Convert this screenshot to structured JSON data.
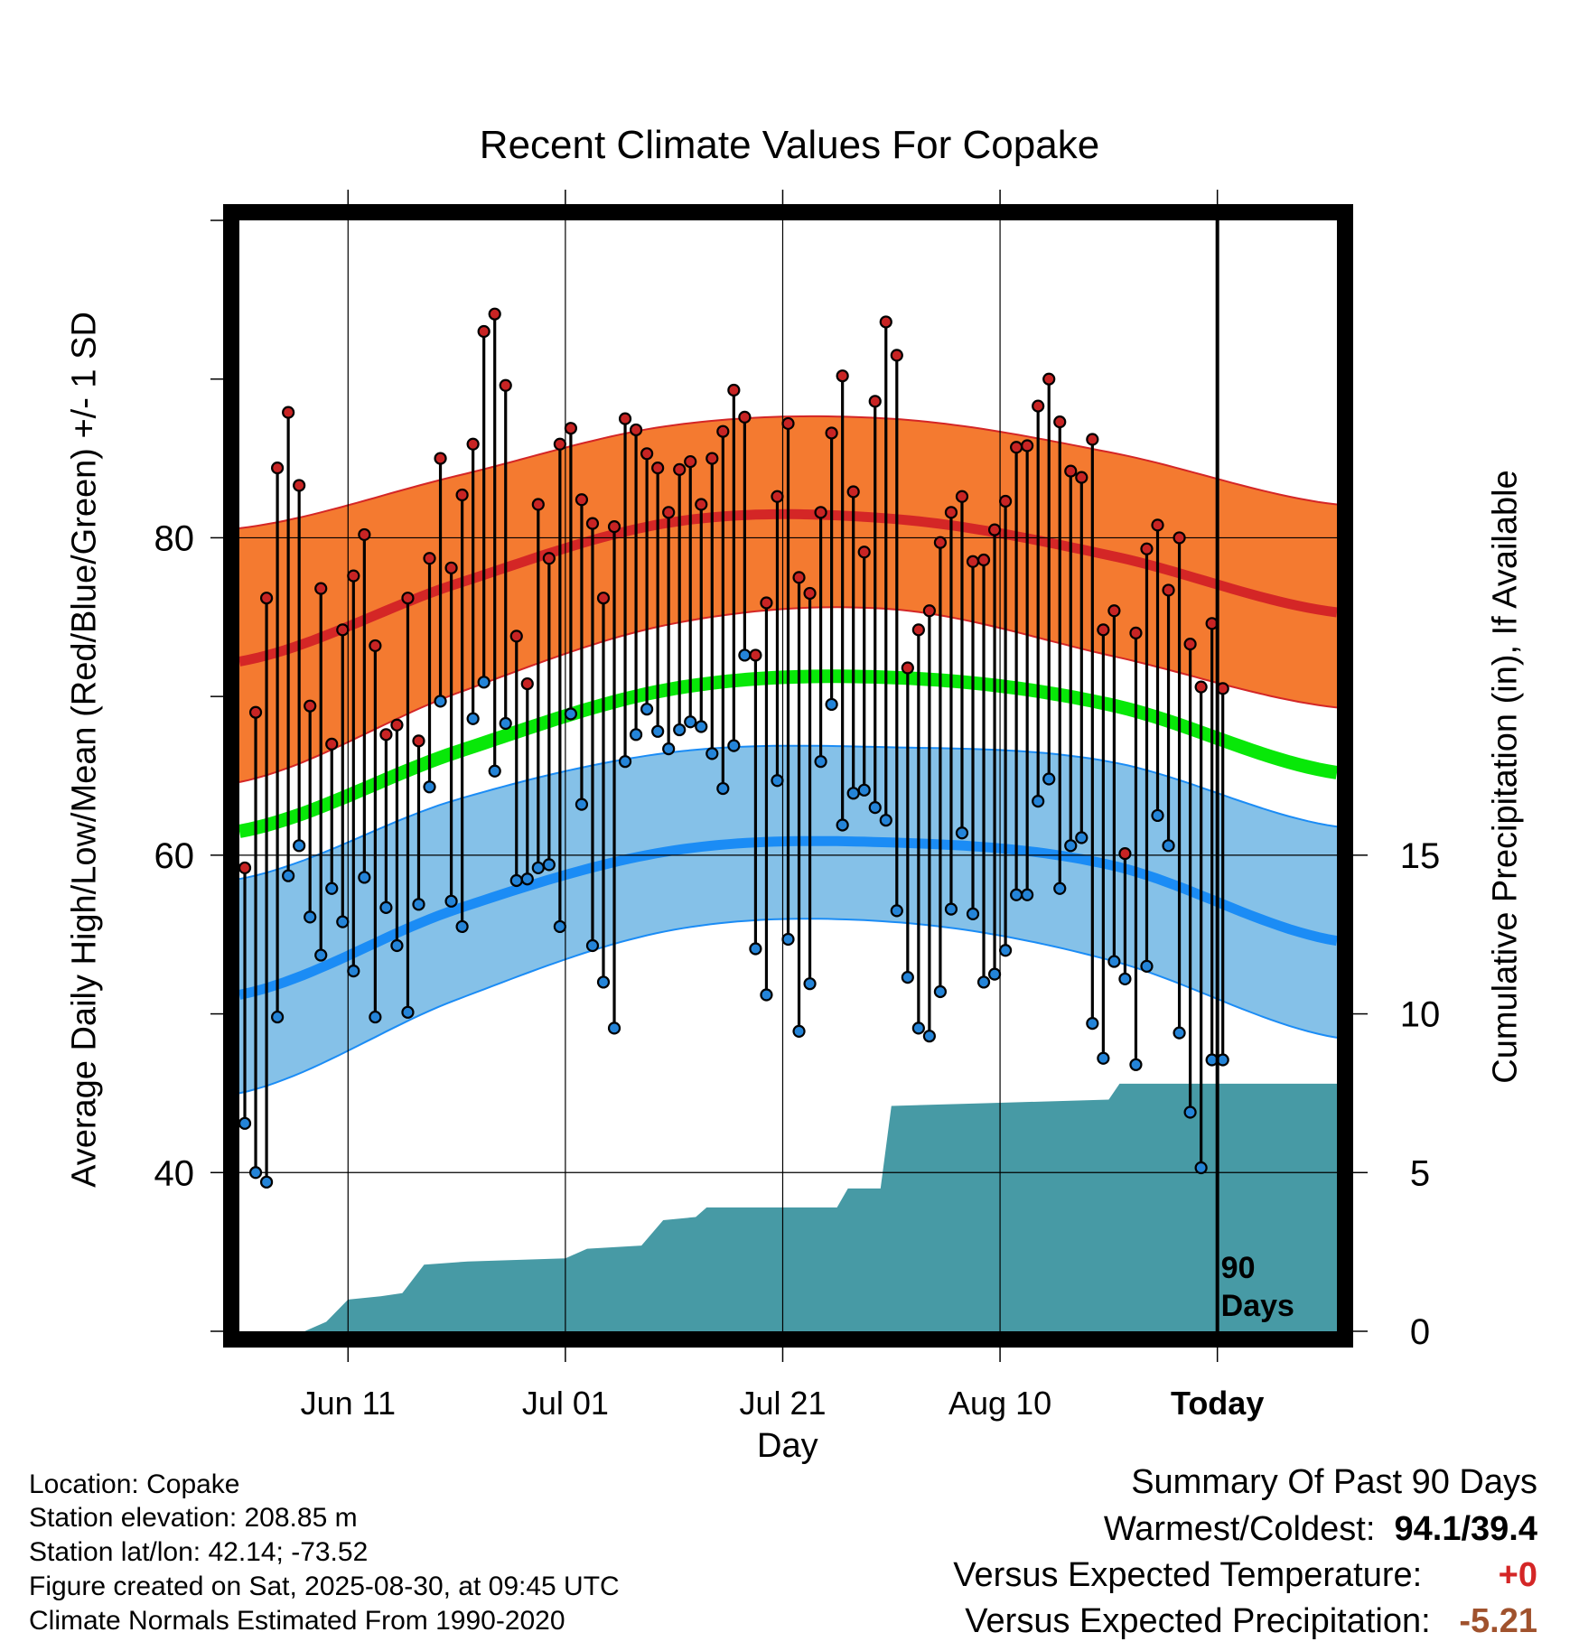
{
  "title": "Recent Climate Values For Copake",
  "axes": {
    "y_left_label": "Average Daily High/Low/Mean (Red/Blue/Green) +/- 1 SD",
    "y_right_label": "Cumulative Precipitation (in), If Available",
    "x_label": "Day",
    "x_ticks": [
      "Jun 11",
      "Jul 01",
      "Jul 21",
      "Aug 10",
      "Today"
    ],
    "y_left_ticks": [
      "40",
      "60",
      "80"
    ],
    "y_right_ticks": [
      "0",
      "5",
      "10",
      "15"
    ]
  },
  "today_marker": {
    "line1": "90",
    "line2": "Days"
  },
  "info": {
    "location": "Location: Copake",
    "elevation": "Station elevation: 208.85 m",
    "latlon": "Station lat/lon: 42.14; -73.52",
    "created": "Figure created on Sat, 2025-08-30, at 09:45 UTC",
    "normals": "Climate Normals Estimated From 1990-2020"
  },
  "summary": {
    "heading": "Summary Of Past 90 Days",
    "warmest_label": "Warmest/Coldest:",
    "warmest_value": "94.1/39.4",
    "temp_label": "Versus Expected Temperature:",
    "temp_value": "+0",
    "precip_label": "Versus Expected Precipitation:",
    "precip_value": "-5.21"
  },
  "colors": {
    "high_band": "#f47a30",
    "high_line": "#d42626",
    "high_edge": "#d42626",
    "low_band": "#85c1e8",
    "low_line": "#1b8cf5",
    "low_edge": "#1b8cf5",
    "mean_line": "#08e808",
    "precip": "#479aa5",
    "high_dot": "#c82424",
    "low_dot": "#2484d8",
    "value_red": "#d42626",
    "value_brown": "#a0522d"
  },
  "chart_data": {
    "type": "line",
    "x_unit": "day",
    "x_range": [
      "2025-06-01",
      "2025-09-10"
    ],
    "today": "2025-08-30",
    "ylim_temperature": [
      30,
      100
    ],
    "ylim_precip_in": [
      0,
      35
    ],
    "normal_high": {
      "dates": [
        "2025-06-01",
        "2025-06-21",
        "2025-07-11",
        "2025-07-31",
        "2025-08-20",
        "2025-09-10"
      ],
      "mean": [
        72.2,
        77.1,
        81.0,
        81.2,
        78.9,
        75.3
      ],
      "upper": [
        80.6,
        83.9,
        87.1,
        87.5,
        85.4,
        82.1
      ],
      "lower": [
        64.6,
        70.2,
        74.6,
        75.5,
        72.6,
        69.3
      ]
    },
    "normal_mean": {
      "dates": [
        "2025-06-01",
        "2025-06-21",
        "2025-07-11",
        "2025-07-31",
        "2025-08-20",
        "2025-09-10"
      ],
      "values": [
        61.5,
        66.5,
        70.5,
        71.2,
        69.5,
        65.2
      ]
    },
    "normal_low": {
      "dates": [
        "2025-06-01",
        "2025-06-21",
        "2025-07-11",
        "2025-07-31",
        "2025-08-20",
        "2025-09-10"
      ],
      "mean": [
        51.2,
        56.6,
        60.3,
        60.8,
        59.4,
        54.6
      ],
      "upper": [
        58.5,
        63.5,
        66.5,
        66.8,
        65.9,
        61.8
      ],
      "lower": [
        45.0,
        50.9,
        55.3,
        55.8,
        53.4,
        48.5
      ]
    },
    "daily_start": "2025-06-01",
    "daily_high": [
      59.2,
      69.0,
      76.2,
      84.4,
      87.9,
      83.3,
      69.4,
      76.8,
      67.0,
      74.2,
      77.6,
      80.2,
      73.2,
      67.6,
      68.2,
      76.2,
      67.2,
      78.7,
      85.0,
      78.1,
      82.7,
      85.9,
      93.0,
      94.1,
      89.6,
      73.8,
      70.8,
      82.1,
      78.7,
      85.9,
      86.9,
      82.4,
      80.9,
      76.2,
      80.7,
      87.5,
      86.8,
      85.3,
      84.4,
      81.6,
      84.3,
      84.8,
      82.1,
      85.0,
      86.7,
      89.3,
      87.6,
      72.6,
      75.9,
      82.6,
      87.2,
      77.5,
      76.5,
      81.6,
      86.6,
      90.2,
      82.9,
      79.1,
      88.6,
      93.6,
      91.5,
      71.8,
      74.2,
      75.4,
      79.7,
      81.6,
      82.6,
      78.5,
      78.6,
      80.5,
      82.3,
      85.7,
      85.8,
      88.3,
      90.0,
      87.3,
      84.2,
      83.8,
      86.2,
      74.2,
      75.4,
      60.1,
      74.0,
      79.3,
      80.8,
      76.7,
      80.0,
      73.3,
      70.6,
      74.6,
      70.5
    ],
    "daily_low": [
      43.1,
      40.0,
      39.4,
      49.8,
      58.7,
      60.6,
      56.1,
      53.7,
      57.9,
      55.8,
      52.7,
      58.6,
      49.8,
      56.7,
      54.3,
      50.1,
      56.9,
      64.3,
      69.7,
      57.1,
      55.5,
      68.6,
      70.9,
      65.3,
      68.3,
      58.4,
      58.5,
      59.2,
      59.4,
      55.5,
      68.9,
      63.2,
      54.3,
      52.0,
      49.1,
      65.9,
      67.6,
      69.2,
      67.8,
      66.7,
      67.9,
      68.4,
      68.1,
      66.4,
      64.2,
      66.9,
      72.6,
      54.1,
      51.2,
      64.7,
      54.7,
      48.9,
      51.9,
      65.9,
      69.5,
      61.9,
      63.9,
      64.1,
      63.0,
      62.2,
      56.5,
      52.3,
      49.1,
      48.6,
      51.4,
      56.6,
      61.4,
      56.3,
      52.0,
      52.5,
      54.0,
      57.5,
      57.5,
      63.4,
      64.8,
      57.9,
      60.6,
      61.1,
      49.4,
      47.2,
      53.3,
      52.2,
      46.8,
      53.0,
      62.5,
      60.6,
      48.8,
      43.8,
      40.3,
      47.1,
      47.1
    ],
    "precip_cumulative_in": [
      {
        "date": "2025-06-01",
        "value": 0.0
      },
      {
        "date": "2025-06-07",
        "value": 0.0
      },
      {
        "date": "2025-06-09",
        "value": 0.3
      },
      {
        "date": "2025-06-11",
        "value": 1.0
      },
      {
        "date": "2025-06-14",
        "value": 1.1
      },
      {
        "date": "2025-06-16",
        "value": 1.2
      },
      {
        "date": "2025-06-18",
        "value": 2.1
      },
      {
        "date": "2025-06-22",
        "value": 2.2
      },
      {
        "date": "2025-07-01",
        "value": 2.3
      },
      {
        "date": "2025-07:03",
        "value": 2.6
      },
      {
        "date": "2025-07-08",
        "value": 2.7
      },
      {
        "date": "2025-07-10",
        "value": 3.5
      },
      {
        "date": "2025-07-13",
        "value": 3.6
      },
      {
        "date": "2025-07-14",
        "value": 3.9
      },
      {
        "date": "2025-07-26",
        "value": 3.9
      },
      {
        "date": "2025-07-27",
        "value": 4.5
      },
      {
        "date": "2025-07-30",
        "value": 4.5
      },
      {
        "date": "2025-07-31",
        "value": 7.1
      },
      {
        "date": "2025-08-10",
        "value": 7.2
      },
      {
        "date": "2025-08-20",
        "value": 7.3
      },
      {
        "date": "2025-08-21",
        "value": 7.8
      },
      {
        "date": "2025-09-10",
        "value": 7.8
      }
    ]
  }
}
